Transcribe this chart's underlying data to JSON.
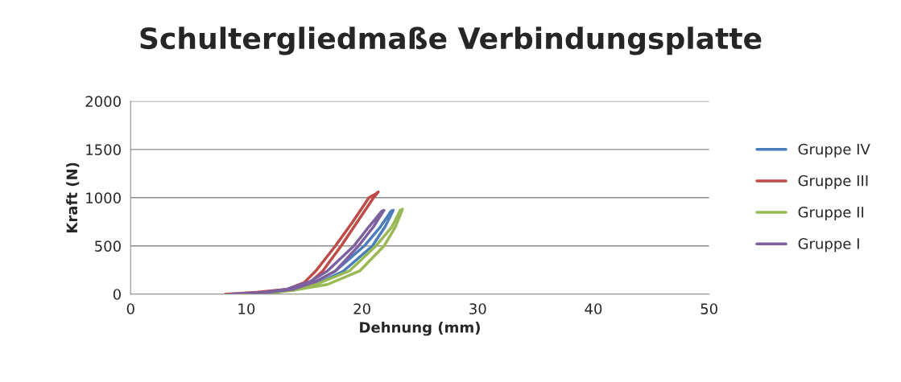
{
  "chart_data": {
    "type": "line",
    "title": "Schultergliedmaße Verbindungsplatte",
    "xlabel": "Dehnung (mm)",
    "ylabel": "Kraft (N)",
    "xlim": [
      0,
      50
    ],
    "xticks": [
      0,
      10,
      20,
      30,
      40,
      50
    ],
    "ylim": [
      0,
      2000
    ],
    "yticks": [
      0,
      500,
      1000,
      1500,
      2000
    ],
    "grid": "y",
    "legend": "right",
    "series": [
      {
        "name": "Gruppe IV",
        "color": "#4a7ebb",
        "x": [
          14,
          16,
          18.4,
          20.9,
          22.0,
          22.7,
          22.5,
          21.6,
          20.2,
          17.7,
          16,
          14
        ],
        "values": [
          40,
          100,
          240,
          500,
          700,
          870,
          860,
          700,
          500,
          240,
          130,
          60
        ]
      },
      {
        "name": "Gruppe III",
        "color": "#be4b48",
        "x": [
          8.2,
          10,
          12,
          14,
          15.5,
          16.6,
          18.2,
          19.6,
          21.0,
          21.4,
          21.2,
          20.6,
          19.2,
          17.7,
          16.0,
          15.0,
          13.5,
          11,
          8.5
        ],
        "values": [
          0,
          10,
          20,
          60,
          120,
          240,
          500,
          750,
          1000,
          1060,
          1040,
          1000,
          750,
          500,
          240,
          120,
          50,
          20,
          0
        ]
      },
      {
        "name": "Gruppe II",
        "color": "#98b954",
        "x": [
          12,
          14,
          17,
          19.8,
          21.9,
          22.9,
          23.5,
          23.3,
          22.6,
          21.2,
          18.9,
          16,
          14
        ],
        "values": [
          10,
          40,
          100,
          240,
          500,
          700,
          880,
          870,
          700,
          500,
          240,
          100,
          50
        ]
      },
      {
        "name": "Gruppe I",
        "color": "#7d60a0",
        "x": [
          8.7,
          10,
          12,
          14,
          16,
          17.7,
          19.7,
          21.0,
          21.9,
          21.7,
          20.6,
          19.3,
          17.0,
          15.5,
          13.5,
          11.5
        ],
        "values": [
          0,
          10,
          20,
          50,
          130,
          240,
          500,
          700,
          870,
          860,
          700,
          500,
          240,
          130,
          50,
          20
        ]
      }
    ]
  }
}
